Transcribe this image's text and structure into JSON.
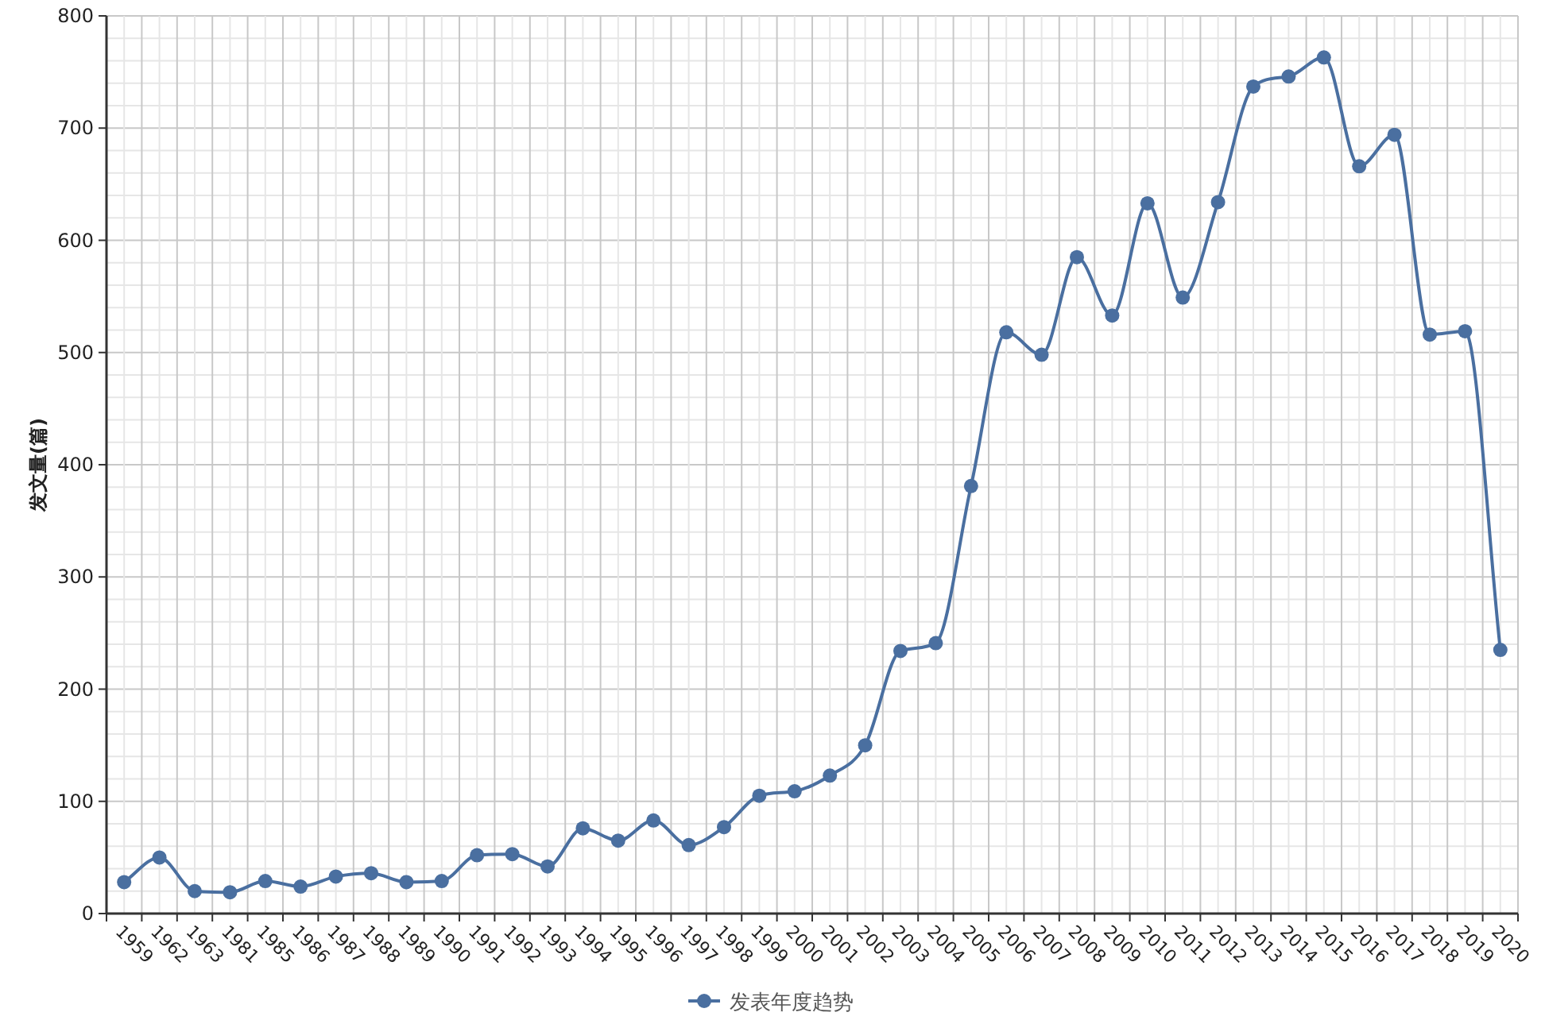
{
  "chart_data": {
    "type": "line",
    "ylabel": "发文量(篇)",
    "categories": [
      "1959",
      "1962",
      "1963",
      "1981",
      "1985",
      "1986",
      "1987",
      "1988",
      "1989",
      "1990",
      "1991",
      "1992",
      "1993",
      "1994",
      "1995",
      "1996",
      "1997",
      "1998",
      "1999",
      "2000",
      "2001",
      "2002",
      "2003",
      "2004",
      "2005",
      "2006",
      "2007",
      "2008",
      "2009",
      "2010",
      "2011",
      "2012",
      "2013",
      "2014",
      "2015",
      "2016",
      "2017",
      "2018",
      "2019",
      "2020"
    ],
    "series": [
      {
        "name": "发表年度趋势",
        "color": "#4a6fa0",
        "values": [
          28,
          50,
          20,
          19,
          29,
          24,
          33,
          36,
          28,
          29,
          52,
          53,
          42,
          76,
          65,
          83,
          61,
          77,
          105,
          109,
          123,
          150,
          234,
          241,
          381,
          518,
          498,
          585,
          533,
          633,
          549,
          634,
          737,
          746,
          763,
          666,
          694,
          516,
          519,
          235
        ]
      }
    ],
    "ylim": [
      0,
      800
    ],
    "yticks": [
      0,
      100,
      200,
      300,
      400,
      500,
      600,
      700,
      800
    ],
    "grid": true,
    "legend": "bottom",
    "marker": "circle",
    "line_style": "solid"
  }
}
